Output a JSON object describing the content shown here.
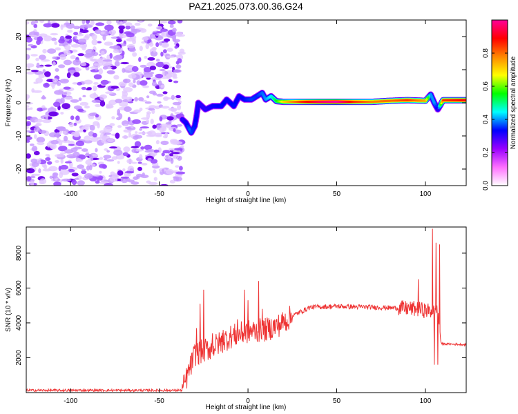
{
  "figure": {
    "title": "PAZ1.2025.073.00.36.G24"
  },
  "chart_data": [
    {
      "type": "heatmap",
      "xlabel": "Height of straight line (km)",
      "ylabel": "Frequency (Hz)",
      "xlim": [
        -125,
        123
      ],
      "ylim": [
        -25,
        25
      ],
      "xticks": [
        -100,
        -50,
        0,
        50,
        100
      ],
      "yticks": [
        -20,
        -10,
        0,
        10,
        20
      ],
      "noise_region_x": [
        -125,
        -37
      ],
      "ridge": [
        {
          "x": -37,
          "y": -5,
          "amp": 0.3
        },
        {
          "x": -35,
          "y": -6,
          "amp": 0.32
        },
        {
          "x": -33,
          "y": -8,
          "amp": 0.38
        },
        {
          "x": -32,
          "y": -9,
          "amp": 0.36
        },
        {
          "x": -30,
          "y": -7,
          "amp": 0.34
        },
        {
          "x": -29,
          "y": -4,
          "amp": 0.32
        },
        {
          "x": -28,
          "y": 0,
          "amp": 0.3
        },
        {
          "x": -26,
          "y": -1,
          "amp": 0.3
        },
        {
          "x": -24,
          "y": -2,
          "amp": 0.3
        },
        {
          "x": -20,
          "y": -1,
          "amp": 0.32
        },
        {
          "x": -15,
          "y": -1,
          "amp": 0.34
        },
        {
          "x": -12,
          "y": 1,
          "amp": 0.32
        },
        {
          "x": -8,
          "y": -1,
          "amp": 0.34
        },
        {
          "x": -5,
          "y": 2,
          "amp": 0.32
        },
        {
          "x": -2,
          "y": 1,
          "amp": 0.34
        },
        {
          "x": 2,
          "y": 1,
          "amp": 0.36
        },
        {
          "x": 5,
          "y": 2,
          "amp": 0.35
        },
        {
          "x": 8,
          "y": 3,
          "amp": 0.38
        },
        {
          "x": 10,
          "y": 1,
          "amp": 0.4
        },
        {
          "x": 13,
          "y": 2,
          "amp": 0.45
        },
        {
          "x": 16,
          "y": 0.5,
          "amp": 0.55
        },
        {
          "x": 20,
          "y": 0.3,
          "amp": 0.7
        },
        {
          "x": 30,
          "y": 0.3,
          "amp": 0.85
        },
        {
          "x": 40,
          "y": 0.3,
          "amp": 0.95
        },
        {
          "x": 50,
          "y": 0.3,
          "amp": 1.0
        },
        {
          "x": 60,
          "y": 0.3,
          "amp": 0.85
        },
        {
          "x": 70,
          "y": 0.3,
          "amp": 0.78
        },
        {
          "x": 80,
          "y": 0.6,
          "amp": 0.8
        },
        {
          "x": 90,
          "y": 0.8,
          "amp": 0.85
        },
        {
          "x": 100,
          "y": 0.6,
          "amp": 0.75
        },
        {
          "x": 103,
          "y": 2.5,
          "amp": 0.4
        },
        {
          "x": 105,
          "y": 0,
          "amp": 0.4
        },
        {
          "x": 107,
          "y": -2,
          "amp": 0.3
        },
        {
          "x": 110,
          "y": 0.8,
          "amp": 0.85
        },
        {
          "x": 123,
          "y": 0.8,
          "amp": 0.9
        }
      ],
      "colorbar": {
        "label": "Normalized spectral amplitude",
        "ticks": [
          0.0,
          0.2,
          0.4,
          0.6,
          0.8
        ],
        "range": [
          0,
          1
        ],
        "colors": [
          "#ffffff",
          "#ff70ff",
          "#9900ff",
          "#0000ff",
          "#00ffff",
          "#00ff00",
          "#ffff00",
          "#ff8800",
          "#ff0000",
          "#ff0099"
        ]
      }
    },
    {
      "type": "line",
      "xlabel": "Height of straight line (km)",
      "ylabel": "SNR (10 * v/v)",
      "xlim": [
        -125,
        123
      ],
      "ylim": [
        0,
        9500
      ],
      "xticks": [
        -100,
        -50,
        0,
        50,
        100
      ],
      "yticks": [
        2000,
        4000,
        6000,
        8000
      ],
      "color": "#ee3333",
      "baseline": [
        {
          "x": -125,
          "y": 130
        },
        {
          "x": -37,
          "y": 130
        },
        {
          "x": -30,
          "y": 2200
        },
        {
          "x": -20,
          "y": 2600
        },
        {
          "x": -10,
          "y": 3200
        },
        {
          "x": 0,
          "y": 3500
        },
        {
          "x": 10,
          "y": 3600
        },
        {
          "x": 18,
          "y": 3900
        },
        {
          "x": 25,
          "y": 4400
        },
        {
          "x": 35,
          "y": 4900
        },
        {
          "x": 50,
          "y": 4950
        },
        {
          "x": 70,
          "y": 4900
        },
        {
          "x": 85,
          "y": 4850
        },
        {
          "x": 95,
          "y": 4800
        },
        {
          "x": 107,
          "y": 4600
        },
        {
          "x": 109,
          "y": 2800
        },
        {
          "x": 123,
          "y": 2750
        }
      ],
      "spikes": [
        {
          "x": -29,
          "y": 3700
        },
        {
          "x": -27,
          "y": 5100
        },
        {
          "x": -25,
          "y": 5900
        },
        {
          "x": -20,
          "y": 3400
        },
        {
          "x": -14,
          "y": 3600
        },
        {
          "x": -6,
          "y": 4200
        },
        {
          "x": -2,
          "y": 5900
        },
        {
          "x": 0,
          "y": 5300
        },
        {
          "x": 6,
          "y": 6400
        },
        {
          "x": 8,
          "y": 4800
        },
        {
          "x": 96,
          "y": 6500
        },
        {
          "x": 104,
          "y": 9400
        },
        {
          "x": 105,
          "y": 1600
        },
        {
          "x": 106,
          "y": 8600
        },
        {
          "x": 107,
          "y": 1600
        },
        {
          "x": 108,
          "y": 8500
        }
      ]
    }
  ]
}
